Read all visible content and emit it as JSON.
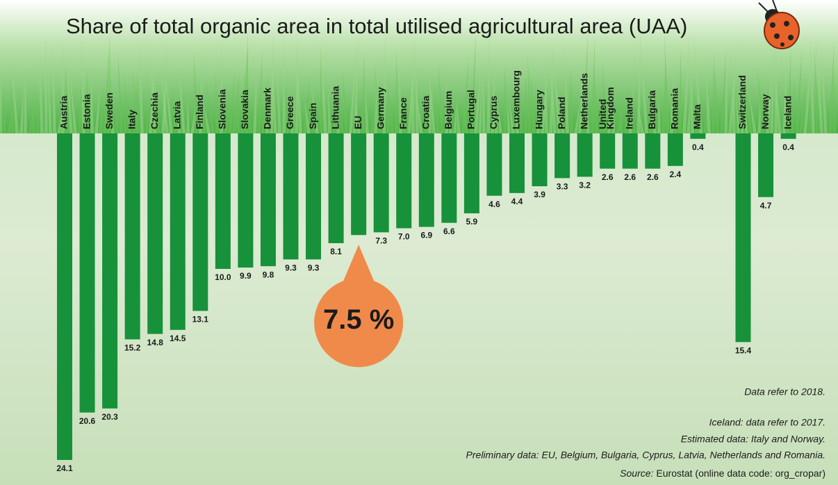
{
  "chart_data": {
    "type": "bar",
    "title": "Share of total organic area in total utilised agricultural area (UAA)",
    "categories": [
      "Austria",
      "Estonia",
      "Sweden",
      "Italy",
      "Czechia",
      "Latvia",
      "Finland",
      "Slovenia",
      "Slovakia",
      "Denmark",
      "Greece",
      "Spain",
      "Lithuania",
      "EU",
      "Germany",
      "France",
      "Croatia",
      "Belgium",
      "Portugal",
      "Cyprus",
      "Luxembourg",
      "Hungary",
      "Poland",
      "Netherlands",
      "United Kingdom",
      "Ireland",
      "Bulgaria",
      "Romania",
      "Malta",
      null,
      "Switzerland",
      "Norway",
      "Iceland"
    ],
    "values": [
      24.1,
      20.6,
      20.3,
      15.2,
      14.8,
      14.5,
      13.1,
      10.0,
      9.9,
      9.8,
      9.3,
      9.3,
      8.1,
      7.5,
      7.3,
      7.0,
      6.9,
      6.6,
      5.9,
      4.6,
      4.4,
      3.9,
      3.3,
      3.2,
      2.6,
      2.6,
      2.6,
      2.4,
      0.4,
      null,
      15.4,
      4.7,
      0.4
    ],
    "value_labels": [
      "24.1",
      "20.6",
      "20.3",
      "15.2",
      "14.8",
      "14.5",
      "13.1",
      "10.0",
      "9.9",
      "9.8",
      "9.3",
      "9.3",
      "8.1",
      "7.5 %",
      "7.3",
      "7.0",
      "6.9",
      "6.6",
      "5.9",
      "4.6",
      "4.4",
      "3.9",
      "3.3",
      "3.2",
      "2.6",
      "2.6",
      "2.6",
      "2.4",
      "0.4",
      null,
      "15.4",
      "4.7",
      "0.4"
    ],
    "highlight": "EU",
    "color": "#17913a",
    "highlight_color": "#f08a4b",
    "notes": [
      "Data refer to 2018.",
      "Iceland: data refer to 2017.",
      "Estimated data:  Italy and Norway.",
      "Preliminary data: EU, Belgium, Bulgaria, Cyprus, Latvia, Netherlands and Romania."
    ],
    "source": {
      "label": "Source:",
      "text": "Eurostat (online data code: org_cropar)"
    }
  }
}
